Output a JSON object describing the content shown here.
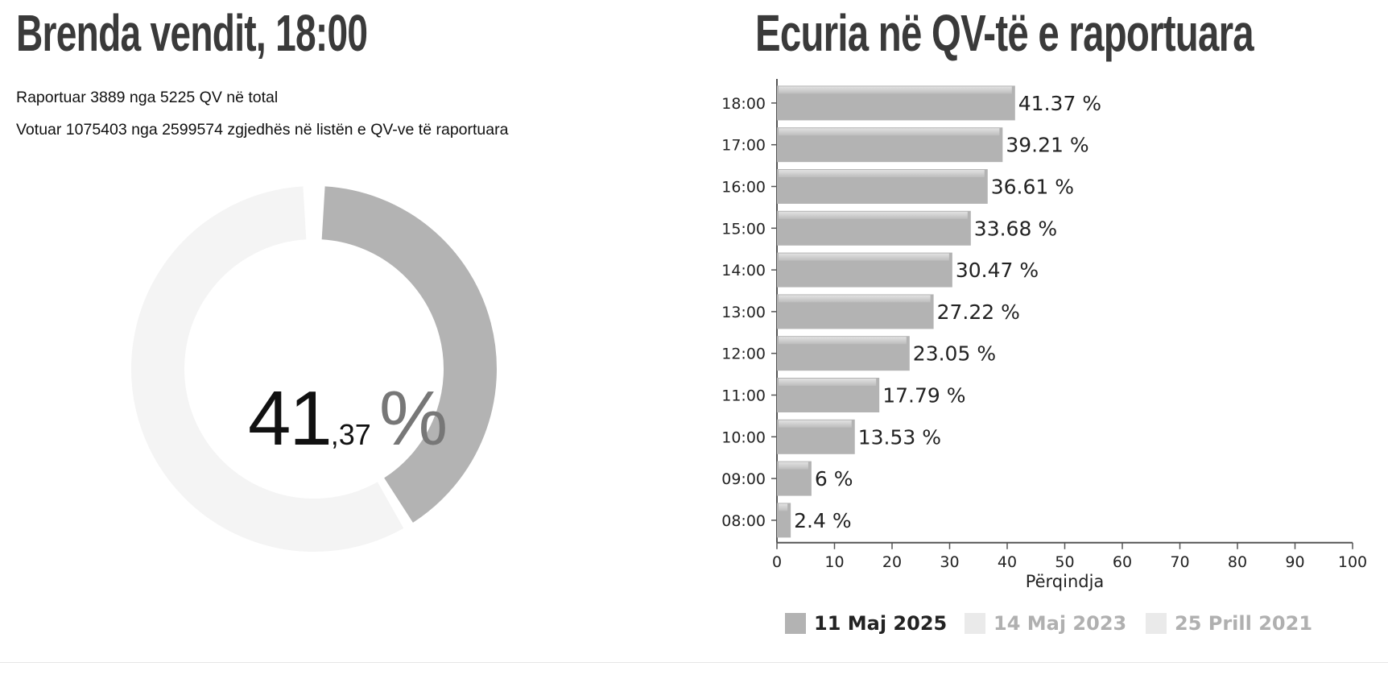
{
  "left_panel": {
    "title": "Brenda vendit, 18:00",
    "reported_line": "Raportuar 3889 nga 5225 QV në total",
    "voted_line": "Votuar 1075403 nga 2599574 zgjedhës në listën e QV-ve të raportuara",
    "turnout_integer": "41",
    "turnout_decimal": ",37",
    "turnout_sign": "%",
    "turnout_fraction": 0.4137,
    "donut_colors": {
      "filled": "#b3b3b3",
      "empty": "#f4f4f4"
    }
  },
  "right_panel": {
    "title": "Ecuria në QV-të e raportuara"
  },
  "chart_data": {
    "type": "bar",
    "orientation": "horizontal",
    "categories": [
      "18:00",
      "17:00",
      "16:00",
      "15:00",
      "14:00",
      "13:00",
      "12:00",
      "11:00",
      "10:00",
      "09:00",
      "08:00"
    ],
    "series": [
      {
        "name": "11 Maj 2025",
        "values": [
          41.37,
          39.21,
          36.61,
          33.68,
          30.47,
          27.22,
          23.05,
          17.79,
          13.53,
          6,
          2.4
        ],
        "color": "#b3b3b3"
      }
    ],
    "data_labels": [
      "41.37 %",
      "39.21 %",
      "36.61 %",
      "33.68 %",
      "30.47 %",
      "27.22 %",
      "23.05 %",
      "17.79 %",
      "13.53 %",
      "6 %",
      "2.4 %"
    ],
    "xlabel": "Përqindja",
    "xlim": [
      0,
      100
    ],
    "xticks": [
      0,
      10,
      20,
      30,
      40,
      50,
      60,
      70,
      80,
      90,
      100
    ],
    "legend": [
      {
        "label": "11 Maj 2025",
        "color": "#b3b3b3",
        "text_color": "#222222"
      },
      {
        "label": "14 Maj 2023",
        "color": "#eaeaea",
        "text_color": "#b0b0b0"
      },
      {
        "label": "25 Prill 2021",
        "color": "#eaeaea",
        "text_color": "#b0b0b0"
      }
    ],
    "legend_position": "bottom",
    "grid": false
  }
}
